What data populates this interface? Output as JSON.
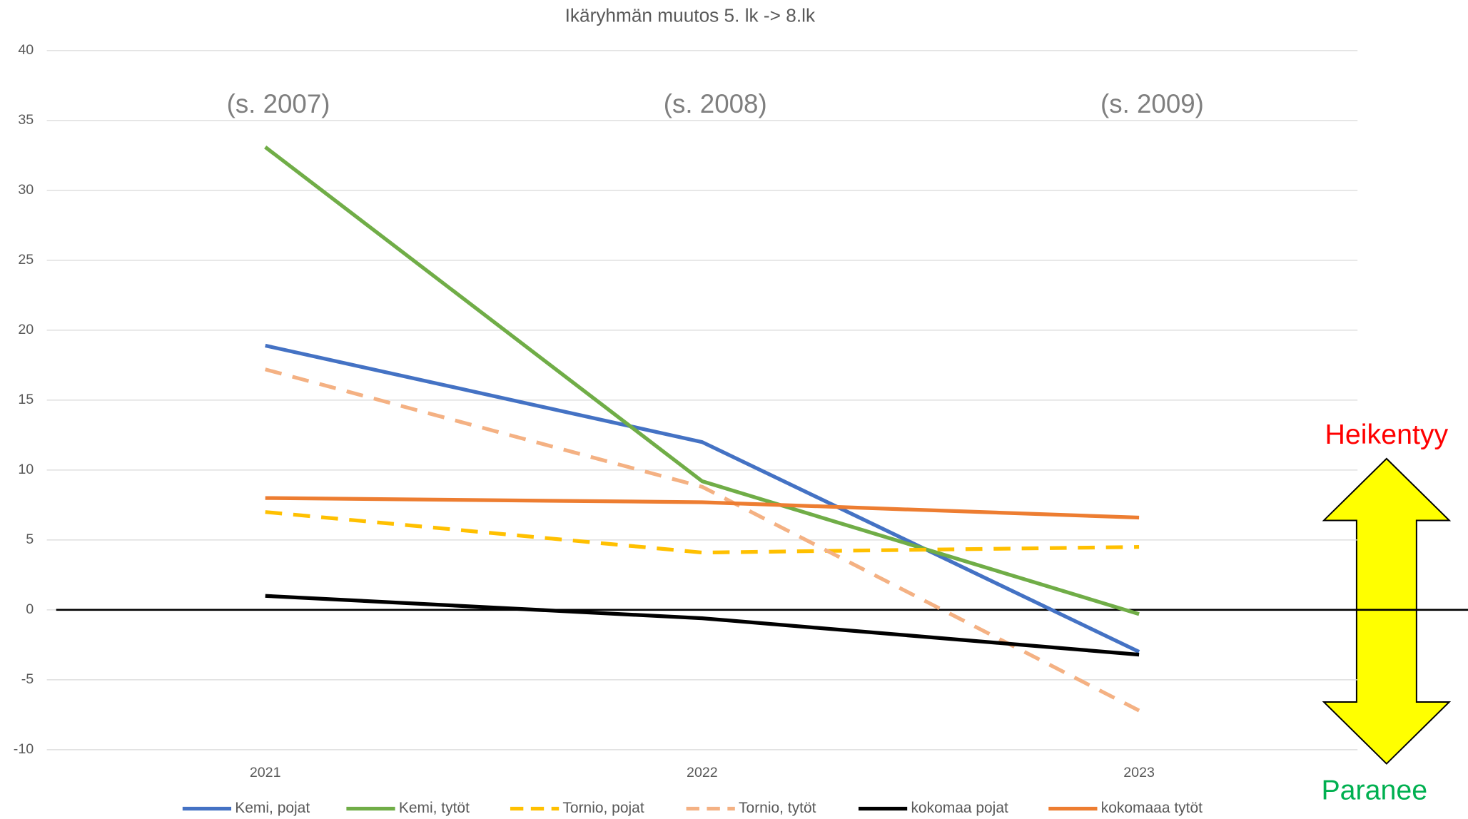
{
  "chart_data": {
    "type": "line",
    "title": "Ikäryhmän muutos 5. lk -> 8.lk",
    "categories": [
      "2021",
      "2022",
      "2023"
    ],
    "series": [
      {
        "name": "Kemi, pojat",
        "color": "#4472C4",
        "style": "solid",
        "values": [
          18.9,
          12.0,
          -3.0
        ]
      },
      {
        "name": "Kemi, tytöt",
        "color": "#70AD47",
        "style": "solid",
        "values": [
          33.1,
          9.2,
          -0.3
        ]
      },
      {
        "name": "Tornio, pojat",
        "color": "#FFC000",
        "style": "dashed",
        "values": [
          7.0,
          4.1,
          4.5
        ]
      },
      {
        "name": "Tornio, tytöt",
        "color": "#F4B183",
        "style": "dashed",
        "values": [
          17.2,
          8.8,
          -7.2
        ]
      },
      {
        "name": "kokomaa pojat",
        "color": "#000000",
        "style": "solid",
        "values": [
          1.0,
          -0.6,
          -3.2
        ]
      },
      {
        "name": "kokomaaa tytöt",
        "color": "#ED7D31",
        "style": "solid",
        "values": [
          8.0,
          7.7,
          6.6
        ]
      }
    ],
    "ylim": [
      -10,
      40
    ],
    "yticks": [
      -10,
      -5,
      0,
      5,
      10,
      15,
      20,
      25,
      30,
      35,
      40
    ],
    "grid": true,
    "legend": "bottom",
    "annotations": [
      "(s. 2007)",
      "(s. 2008)",
      "(s. 2009)"
    ],
    "worse_label": "Heikentyy",
    "better_label": "Paranee"
  }
}
